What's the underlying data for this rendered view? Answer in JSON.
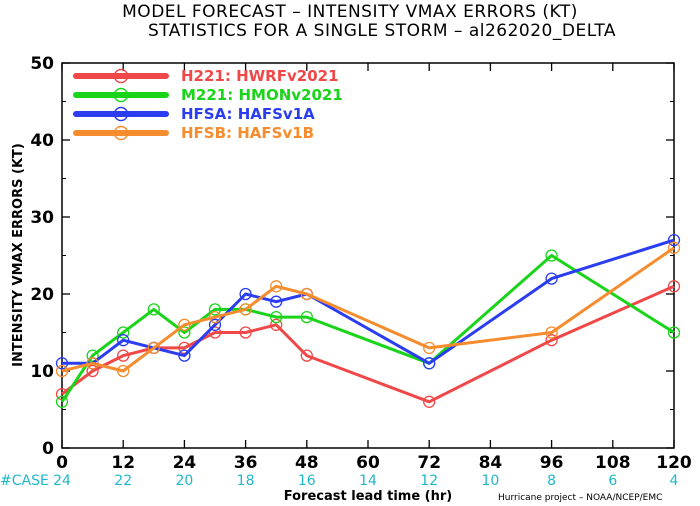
{
  "chart_data": {
    "type": "line",
    "title": "MODEL FORECAST – INTENSITY VMAX ERRORS (KT)",
    "subtitle": "STATISTICS FOR A SINGLE STORM – al262020_DELTA",
    "xlabel": "Forecast lead time (hr)",
    "ylabel": "INTENSITY VMAX ERRORS (KT)",
    "xlim": [
      0,
      120
    ],
    "ylim": [
      0,
      50
    ],
    "x_ticks": [
      0,
      12,
      24,
      36,
      48,
      60,
      72,
      84,
      96,
      108,
      120
    ],
    "y_ticks": [
      0,
      10,
      20,
      30,
      40,
      50
    ],
    "legend_position": "top-left",
    "case_label": "#CASE",
    "case_x": [
      0,
      12,
      24,
      36,
      48,
      60,
      72,
      84,
      96,
      108,
      120
    ],
    "case_counts": [
      24,
      22,
      20,
      18,
      16,
      14,
      12,
      10,
      8,
      6,
      4
    ],
    "credit": "Hurricane project – NOAA/NCEP/EMC",
    "series": [
      {
        "name": "H221: HWRFv2021",
        "color": "#f04848",
        "points": [
          [
            0,
            7
          ],
          [
            6,
            10
          ],
          [
            12,
            12
          ],
          [
            18,
            13
          ],
          [
            24,
            13
          ],
          [
            30,
            15
          ],
          [
            36,
            15
          ],
          [
            42,
            16
          ],
          [
            48,
            12
          ],
          [
            72,
            6
          ],
          [
            96,
            14
          ],
          [
            120,
            21
          ]
        ]
      },
      {
        "name": "M221: HMONv2021",
        "color": "#19d419",
        "points": [
          [
            0,
            6
          ],
          [
            6,
            12
          ],
          [
            12,
            15
          ],
          [
            18,
            18
          ],
          [
            24,
            15
          ],
          [
            30,
            18
          ],
          [
            36,
            18
          ],
          [
            42,
            17
          ],
          [
            48,
            17
          ],
          [
            72,
            11
          ],
          [
            96,
            25
          ],
          [
            120,
            15
          ]
        ]
      },
      {
        "name": "HFSA: HAFSv1A",
        "color": "#2a3df0",
        "points": [
          [
            0,
            11
          ],
          [
            6,
            11
          ],
          [
            12,
            14
          ],
          [
            18,
            13
          ],
          [
            24,
            12
          ],
          [
            30,
            16
          ],
          [
            36,
            20
          ],
          [
            42,
            19
          ],
          [
            48,
            20
          ],
          [
            72,
            11
          ],
          [
            96,
            22
          ],
          [
            120,
            27
          ]
        ]
      },
      {
        "name": "HFSB: HAFSv1B",
        "color": "#f58c2e",
        "points": [
          [
            0,
            10
          ],
          [
            6,
            11
          ],
          [
            12,
            10
          ],
          [
            18,
            13
          ],
          [
            24,
            16
          ],
          [
            30,
            17
          ],
          [
            36,
            18
          ],
          [
            42,
            21
          ],
          [
            48,
            20
          ],
          [
            72,
            13
          ],
          [
            96,
            15
          ],
          [
            120,
            26
          ]
        ]
      }
    ]
  }
}
